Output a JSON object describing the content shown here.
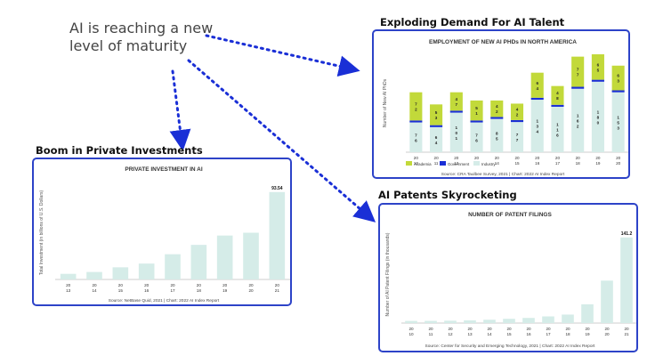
{
  "headline": "AI is reaching a new\nlevel of maturity",
  "sections": {
    "talent": "Exploding Demand For AI Talent",
    "investments": "Boom in Private Investments",
    "patents": "AI Patents Skyrocketing"
  },
  "colors": {
    "panel_border": "#2d43c8",
    "bar_light": "#d5ece8",
    "academia": "#c2d93a",
    "government": "#1a2fd6",
    "arrow": "#1a2fd6"
  },
  "chart_data": [
    {
      "id": "phds",
      "type": "bar",
      "stacked": true,
      "title": "EMPLOYMENT OF NEW AI PHDs IN NORTH AMERICA",
      "ylabel": "Number of New AI PhDs",
      "categories": [
        "20 10",
        "20 11",
        "20 12",
        "20 13",
        "20 14",
        "20 15",
        "20 16",
        "20 17",
        "20 18",
        "20 19",
        "20 20"
      ],
      "series": [
        {
          "name": "Industry",
          "values": [
            76,
            64,
            101,
            76,
            85,
            77,
            134,
            116,
            162,
            180,
            153
          ]
        },
        {
          "name": "Government",
          "values": [
            5,
            5,
            5,
            5,
            5,
            5,
            5,
            5,
            5,
            5,
            5
          ]
        },
        {
          "name": "Academia",
          "values": [
            72,
            53,
            47,
            51,
            42,
            42,
            64,
            48,
            77,
            65,
            63
          ]
        }
      ],
      "ylim": [
        0,
        250
      ],
      "legend": "bottom-left",
      "source": "Source: CRA Taulbee Survey, 2021  |  Chart: 2022 AI Index Report"
    },
    {
      "id": "investment",
      "type": "bar",
      "title": "PRIVATE INVESTMENT IN AI",
      "ylabel": "Total Investment (in billions of U.S. Dollars)",
      "categories": [
        "20 13",
        "20 14",
        "20 15",
        "20 16",
        "20 17",
        "20 18",
        "20 19",
        "20 20",
        "20 21"
      ],
      "values": [
        6,
        8,
        13,
        17,
        27,
        37,
        47,
        50,
        93.54
      ],
      "data_label": "93.54",
      "ylim": [
        0,
        100
      ],
      "source": "Source: NetBase Quid, 2021  |  Chart: 2022 AI Index Report"
    },
    {
      "id": "patents",
      "type": "bar",
      "title": "NUMBER OF PATENT FILINGS",
      "ylabel": "Number of AI Patent Filings (in thousands)",
      "categories": [
        "20 10",
        "20 11",
        "20 12",
        "20 13",
        "20 14",
        "20 15",
        "20 16",
        "20 17",
        "20 18",
        "20 19",
        "20 20",
        "20 21"
      ],
      "values": [
        3.5,
        3.6,
        3.9,
        4.5,
        5.5,
        7.0,
        8.5,
        11.0,
        14.0,
        31.0,
        70.0,
        141.2
      ],
      "data_label": "141.2",
      "ylim": [
        0,
        160
      ],
      "source": "Source: Center for Security and Emerging Technology, 2021  |  Chart: 2022 AI Index Report"
    }
  ]
}
